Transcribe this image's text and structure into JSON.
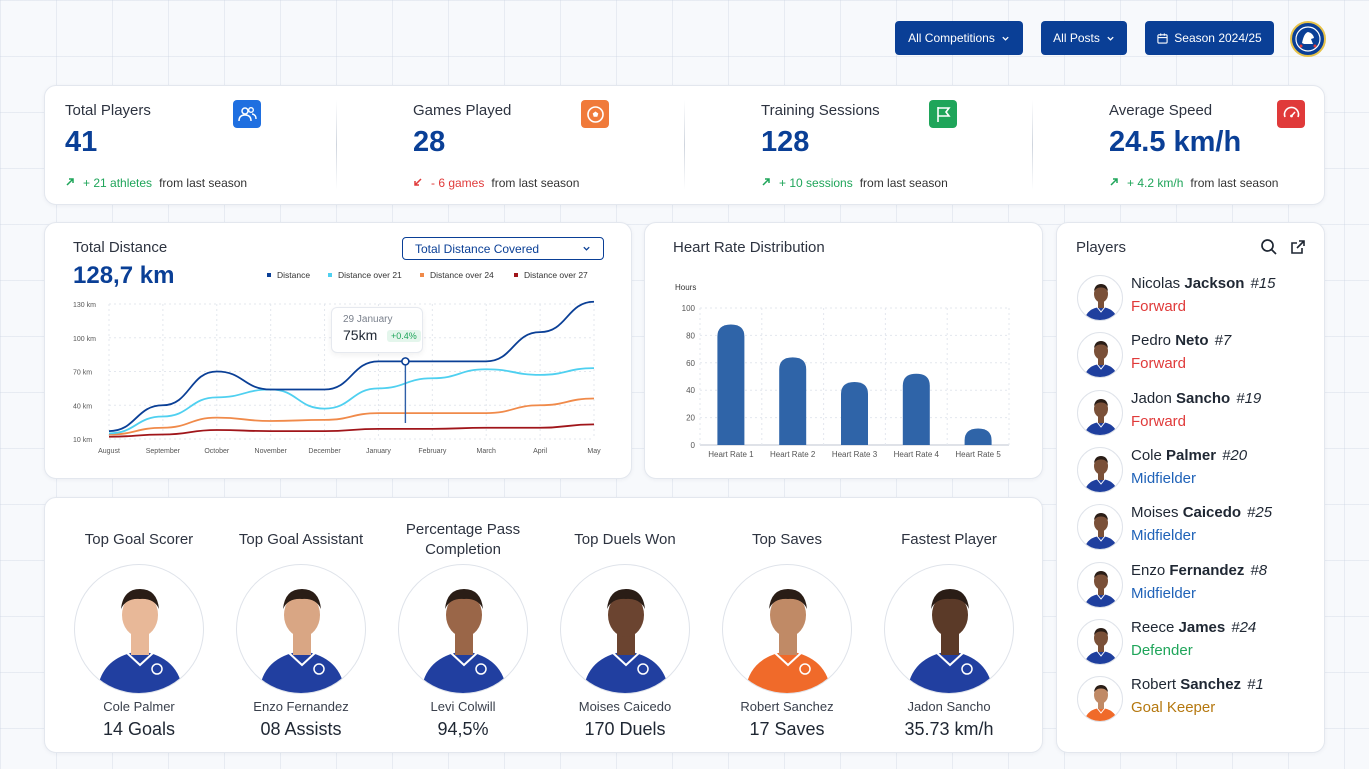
{
  "filters": {
    "competitions": "All Competitions",
    "posts": "All Posts",
    "season": "Season 2024/25"
  },
  "stats": [
    {
      "label": "Total Players",
      "value": "41",
      "change": "+ 21 athletes",
      "suffix": "from last season",
      "trend": "up",
      "icon": "users-icon",
      "color": "#1f6fe0"
    },
    {
      "label": "Games Played",
      "value": "28",
      "change": "- 6 games",
      "suffix": "from last season",
      "trend": "down",
      "icon": "ball-icon",
      "color": "#f07a3a"
    },
    {
      "label": "Training Sessions",
      "value": "128",
      "change": "+ 10 sessions",
      "suffix": "from last season",
      "trend": "up",
      "icon": "flag-icon",
      "color": "#1fa55a"
    },
    {
      "label": "Average Speed",
      "value": "24.5 km/h",
      "change": "+ 4.2 km/h",
      "suffix": "from last season",
      "trend": "up",
      "icon": "speed-icon",
      "color": "#e03a3a"
    }
  ],
  "distance": {
    "title": "Total Distance",
    "value": "128,7 km",
    "dropdown": "Total Distance Covered",
    "tooltip": {
      "date": "29 January",
      "value": "75km",
      "change": "+0.4%"
    }
  },
  "chart_data": [
    {
      "type": "line",
      "title": "Total Distance",
      "categories": [
        "August",
        "September",
        "October",
        "November",
        "December",
        "January",
        "February",
        "March",
        "April",
        "May"
      ],
      "y_ticks": [
        "130 km",
        "100 km",
        "70 km",
        "40 km",
        "10 km"
      ],
      "ylim": [
        10,
        130
      ],
      "legend_position": "top-right",
      "grid": true,
      "series": [
        {
          "name": "Distance",
          "color": "#0a3f96",
          "values": [
            17,
            40,
            70,
            54,
            54,
            79,
            79,
            79,
            105,
            132
          ]
        },
        {
          "name": "Distance over 21",
          "color": "#4fd0f0",
          "values": [
            15,
            30,
            47,
            54,
            37,
            55,
            64,
            72,
            67,
            73
          ]
        },
        {
          "name": "Distance over 24",
          "color": "#f08a4a",
          "values": [
            14,
            20,
            29,
            26,
            27,
            33,
            33,
            33,
            40,
            46
          ]
        },
        {
          "name": "Distance over 27",
          "color": "#a0151a",
          "values": [
            12,
            14,
            18,
            17,
            17,
            19,
            19,
            20,
            20,
            23
          ]
        }
      ]
    },
    {
      "type": "bar",
      "title": "Heart Rate Distribution",
      "ylabel": "Hours",
      "categories": [
        "Heart Rate 1",
        "Heart Rate 2",
        "Heart Rate 3",
        "Heart Rate 4",
        "Heart Rate 5"
      ],
      "values": [
        88,
        64,
        46,
        52,
        12
      ],
      "ylim": [
        0,
        100
      ],
      "y_ticks": [
        "100",
        "80",
        "60",
        "40",
        "20",
        "0"
      ],
      "grid": true,
      "color": "#2f64a8"
    }
  ],
  "heart": {
    "title": "Heart Rate Distribution",
    "ylabel": "Hours"
  },
  "players": {
    "title": "Players",
    "list": [
      {
        "first": "Nicolas",
        "last": "Jackson",
        "num": "#15",
        "pos": "Forward",
        "color": "#e03a3a",
        "kit": "#1f3f9e"
      },
      {
        "first": "Pedro",
        "last": "Neto",
        "num": "#7",
        "pos": "Forward",
        "color": "#e03a3a",
        "kit": "#1f3f9e"
      },
      {
        "first": "Jadon",
        "last": "Sancho",
        "num": "#19",
        "pos": "Forward",
        "color": "#e03a3a",
        "kit": "#1f3f9e"
      },
      {
        "first": "Cole",
        "last": "Palmer",
        "num": "#20",
        "pos": "Midfielder",
        "color": "#1f62b8",
        "kit": "#1f3f9e"
      },
      {
        "first": "Moises",
        "last": "Caicedo",
        "num": "#25",
        "pos": "Midfielder",
        "color": "#1f62b8",
        "kit": "#1f3f9e"
      },
      {
        "first": "Enzo",
        "last": "Fernandez",
        "num": "#8",
        "pos": "Midfielder",
        "color": "#1f62b8",
        "kit": "#1f3f9e"
      },
      {
        "first": "Reece",
        "last": "James",
        "num": "#24",
        "pos": "Defender",
        "color": "#1fa55a",
        "kit": "#1f3f9e"
      },
      {
        "first": "Robert",
        "last": "Sanchez",
        "num": "#1",
        "pos": "Goal Keeper",
        "color": "#b5780f",
        "kit": "#f06a2a"
      }
    ]
  },
  "top": [
    {
      "title": "Top Goal Scorer",
      "name": "Cole Palmer",
      "value": "14 Goals",
      "kit": "#213fa0",
      "skin": "#e8b898"
    },
    {
      "title": "Top Goal Assistant",
      "name": "Enzo Fernandez",
      "value": "08 Assists",
      "kit": "#213fa0",
      "skin": "#d9a684"
    },
    {
      "title": "Percentage Pass Completion",
      "name": "Levi Colwill",
      "value": "94,5%",
      "kit": "#213fa0",
      "skin": "#9a6648"
    },
    {
      "title": "Top Duels Won",
      "name": "Moises Caicedo",
      "value": "170 Duels",
      "kit": "#213fa0",
      "skin": "#6b4430"
    },
    {
      "title": "Top Saves",
      "name": "Robert Sanchez",
      "value": "17 Saves",
      "kit": "#f06a2a",
      "skin": "#c08a66"
    },
    {
      "title": "Fastest Player",
      "name": "Jadon Sancho",
      "value": "35.73 km/h",
      "kit": "#213fa0",
      "skin": "#5b3a28"
    }
  ]
}
